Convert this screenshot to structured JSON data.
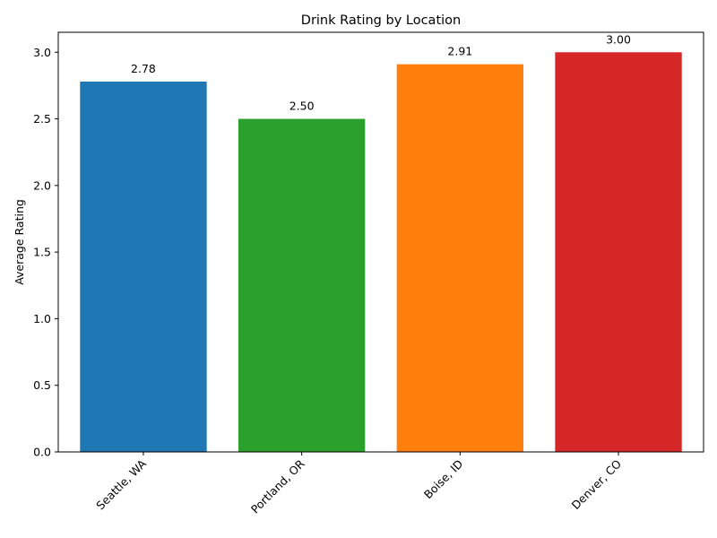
{
  "chart_data": {
    "type": "bar",
    "title": "Drink Rating by Location",
    "xlabel": "",
    "ylabel": "Average Rating",
    "categories": [
      "Seattle, WA",
      "Portland, OR",
      "Boise, ID",
      "Denver, CO"
    ],
    "values": [
      2.78,
      2.5,
      2.91,
      3.0
    ],
    "value_labels": [
      "2.78",
      "2.50",
      "2.91",
      "3.00"
    ],
    "colors": [
      "#1f77b4",
      "#2ca02c",
      "#ff7f0e",
      "#d62728"
    ],
    "ylim": [
      0,
      3.15
    ],
    "yticks": [
      0.0,
      0.5,
      1.0,
      1.5,
      2.0,
      2.5,
      3.0
    ],
    "ytick_labels": [
      "0.0",
      "0.5",
      "1.0",
      "1.5",
      "2.0",
      "2.5",
      "3.0"
    ],
    "grid": false,
    "legend": "none",
    "xtick_rotation_deg": 45
  }
}
